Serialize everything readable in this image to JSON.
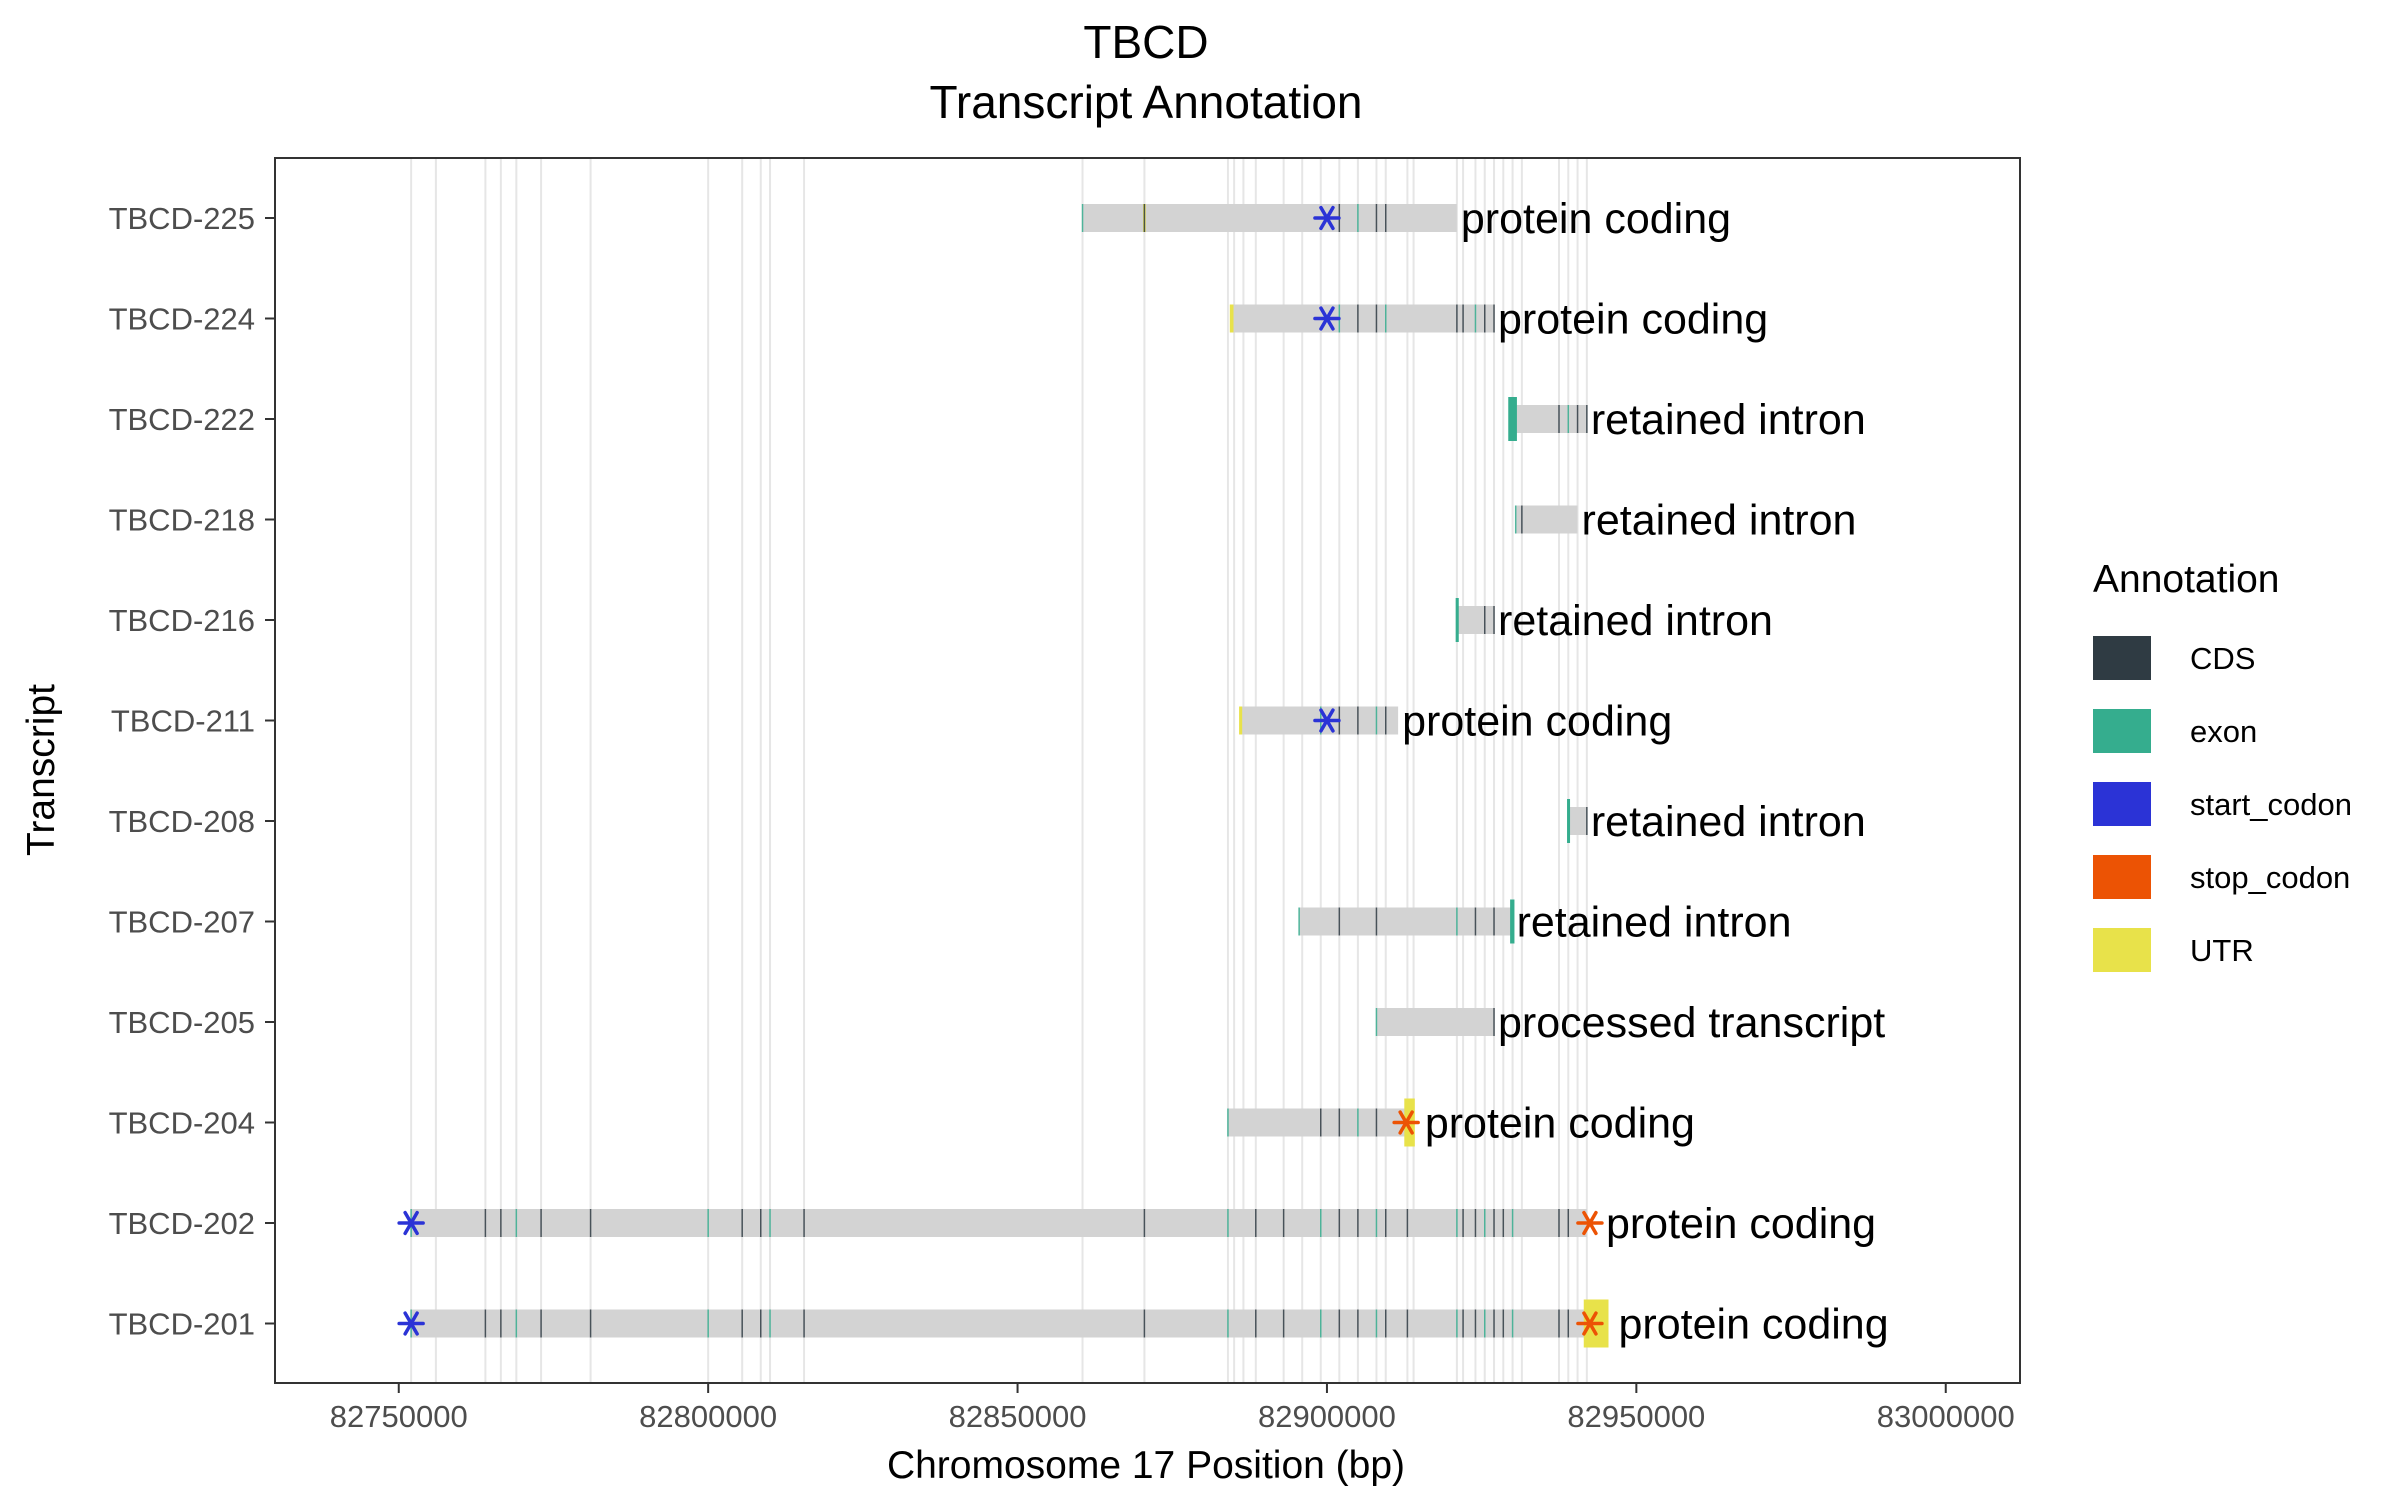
{
  "colors": {
    "CDS": "#2f3b43",
    "exon": "#35ad8e",
    "start_codon": "#2b33d6",
    "stop_codon": "#ec5304",
    "UTR": "#e8e24a",
    "transcript_bar": "#d3d3d3",
    "gridline": "#e6e6e6",
    "panel_border": "#333333"
  },
  "chart_data": {
    "type": "gene-transcript-track",
    "title": [
      "TBCD",
      "Transcript Annotation"
    ],
    "xlabel": "Chromosome 17 Position (bp)",
    "ylabel": "Transcript",
    "xlim": [
      82730000,
      83012000
    ],
    "x_ticks": [
      82750000,
      82800000,
      82850000,
      82900000,
      82950000,
      83000000
    ],
    "x_tick_labels": [
      "82750000",
      "82800000",
      "82850000",
      "82900000",
      "82950000",
      "83000000"
    ],
    "legend": {
      "title": "Annotation",
      "placement": "right",
      "entries": [
        "CDS",
        "exon",
        "start_codon",
        "stop_codon",
        "UTR"
      ]
    },
    "exon_grid_positions": [
      82752000,
      82756000,
      82764000,
      82766500,
      82769000,
      82773000,
      82781000,
      82800000,
      82805500,
      82808500,
      82810000,
      82815500,
      82860500,
      82870500,
      82884000,
      82885000,
      82886500,
      82888500,
      82893000,
      82896000,
      82899000,
      82902000,
      82905000,
      82908000,
      82909500,
      82913000,
      82914000,
      82921000,
      82922000,
      82924000,
      82925500,
      82927000,
      82928500,
      82930000,
      82931500,
      82937500,
      82939000,
      82940500,
      82942000
    ],
    "transcripts": [
      {
        "name": "TBCD-225",
        "biotype": "protein coding",
        "start": 82860500,
        "end": 82921000,
        "exons": [
          82860500,
          82870500,
          82902000,
          82905000,
          82908000,
          82909500
        ],
        "start_codon": 82900000,
        "stop_codon": null,
        "utr": [
          [
            82870300,
            82870700
          ]
        ]
      },
      {
        "name": "TBCD-224",
        "biotype": "protein coding",
        "start": 82884500,
        "end": 82927000,
        "exons": [
          82902000,
          82905000,
          82908000,
          82909500,
          82921000,
          82922000,
          82924000,
          82925500,
          82927000
        ],
        "start_codon": 82900000,
        "stop_codon": null,
        "utr": [
          [
            82884300,
            82884900
          ]
        ]
      },
      {
        "name": "TBCD-222",
        "biotype": "retained intron",
        "start": 82929500,
        "end": 82942000,
        "exons": [
          82929500,
          82930000,
          82937500,
          82939000,
          82940500,
          82942000
        ],
        "start_codon": null,
        "stop_codon": null,
        "utr": [],
        "thick_exon": [
          82929300,
          82930700
        ]
      },
      {
        "name": "TBCD-218",
        "biotype": "retained intron",
        "start": 82930500,
        "end": 82940500,
        "exons": [
          82930500,
          82931500
        ],
        "start_codon": null,
        "stop_codon": null,
        "utr": []
      },
      {
        "name": "TBCD-216",
        "biotype": "retained intron",
        "start": 82921000,
        "end": 82927000,
        "exons": [
          82921000,
          82925500,
          82927000
        ],
        "start_codon": null,
        "stop_codon": null,
        "utr": [],
        "thick_exon": [
          82920800,
          82921300
        ]
      },
      {
        "name": "TBCD-211",
        "biotype": "protein coding",
        "start": 82886000,
        "end": 82911500,
        "exons": [
          82899000,
          82902000,
          82905000,
          82908000,
          82909500
        ],
        "start_codon": 82900000,
        "stop_codon": null,
        "utr": [
          [
            82885800,
            82886300
          ]
        ]
      },
      {
        "name": "TBCD-208",
        "biotype": "retained intron",
        "start": 82939000,
        "end": 82942000,
        "exons": [
          82939000,
          82942000
        ],
        "start_codon": null,
        "stop_codon": null,
        "utr": [],
        "thick_exon": [
          82938800,
          82939200
        ]
      },
      {
        "name": "TBCD-207",
        "biotype": "retained intron",
        "start": 82895500,
        "end": 82930000,
        "exons": [
          82895500,
          82902000,
          82908000,
          82921000,
          82924000,
          82927000
        ],
        "start_codon": null,
        "stop_codon": null,
        "utr": [],
        "thick_exon": [
          82929600,
          82930300
        ]
      },
      {
        "name": "TBCD-205",
        "biotype": "processed transcript",
        "start": 82908000,
        "end": 82927000,
        "exons": [
          82908000,
          82927000
        ],
        "start_codon": null,
        "stop_codon": null,
        "utr": []
      },
      {
        "name": "TBCD-204",
        "biotype": "protein coding",
        "start": 82884000,
        "end": 82914000,
        "exons": [
          82884000,
          82899000,
          82902000,
          82905000,
          82908000
        ],
        "start_codon": null,
        "stop_codon": 82912800,
        "utr": [
          [
            82912500,
            82914200
          ]
        ]
      },
      {
        "name": "TBCD-202",
        "biotype": "protein coding",
        "start": 82752000,
        "end": 82942000,
        "exons": [
          82752000,
          82764000,
          82766500,
          82769000,
          82773000,
          82781000,
          82800000,
          82805500,
          82808500,
          82810000,
          82815500,
          82870500,
          82884000,
          82888500,
          82893000,
          82899000,
          82902000,
          82905000,
          82908000,
          82909500,
          82913000,
          82921000,
          82922000,
          82924000,
          82925500,
          82927000,
          82928500,
          82930000,
          82937500,
          82939000
        ],
        "start_codon": 82752000,
        "stop_codon": 82942500,
        "utr": []
      },
      {
        "name": "TBCD-201",
        "biotype": "protein coding",
        "start": 82752000,
        "end": 82945000,
        "exons": [
          82752000,
          82764000,
          82766500,
          82769000,
          82773000,
          82781000,
          82800000,
          82805500,
          82808500,
          82810000,
          82815500,
          82870500,
          82884000,
          82888500,
          82893000,
          82899000,
          82902000,
          82905000,
          82908000,
          82909500,
          82913000,
          82921000,
          82922000,
          82924000,
          82925500,
          82927000,
          82928500,
          82930000,
          82937500,
          82939000
        ],
        "start_codon": 82752000,
        "stop_codon": 82942500,
        "utr": [
          [
            82941500,
            82945500
          ]
        ]
      }
    ]
  }
}
